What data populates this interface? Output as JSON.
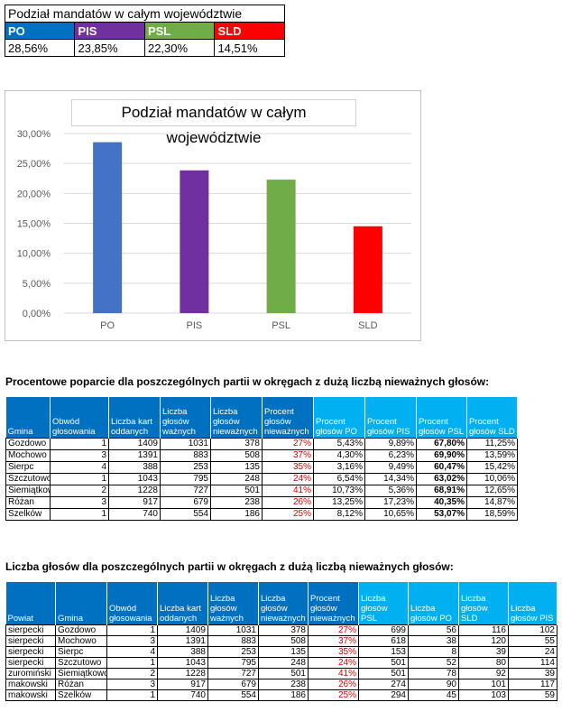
{
  "summary": {
    "title": "Podział mandatów w całym województwie",
    "parties": [
      {
        "name": "PO",
        "value": "28,56%",
        "color": "#0070C0"
      },
      {
        "name": "PIS",
        "value": "23,85%",
        "color": "#7030A0"
      },
      {
        "name": "PSL",
        "value": "22,30%",
        "color": "#70AD47"
      },
      {
        "name": "SLD",
        "value": "14,51%",
        "color": "#FF0000"
      }
    ]
  },
  "chart_data": {
    "type": "bar",
    "title": "Podział mandatów w całym województwie",
    "categories": [
      "PO",
      "PIS",
      "PSL",
      "SLD"
    ],
    "values": [
      28.56,
      23.85,
      22.3,
      14.51
    ],
    "colors": [
      "#4472C4",
      "#7030A0",
      "#70AD47",
      "#FF0000"
    ],
    "ylim": [
      0,
      30
    ],
    "yticks": [
      "0,00%",
      "5,00%",
      "10,00%",
      "15,00%",
      "20,00%",
      "25,00%",
      "30,00%"
    ],
    "grid": true
  },
  "table1": {
    "title": "Procentowe poparcie dla poszczególnych partii w okręgach z dużą liczbą nieważnych głosów:",
    "headers": [
      "Gmina",
      "Obwód głosowania",
      "Liczba kart oddanych",
      "Liczba głosów ważnych",
      "Liczba głosów nieważnych",
      "Procent głosów nieważnych",
      "Procent głosów PO",
      "Procent głosów PIS",
      "Procent głosów PSL",
      "Procent głosów SLD"
    ],
    "rows": [
      [
        "Gozdowo",
        "1",
        "1409",
        "1031",
        "378",
        "27%",
        "5,43%",
        "9,89%",
        "67,80%",
        "11,25%"
      ],
      [
        "Mochowo",
        "3",
        "1391",
        "883",
        "508",
        "37%",
        "4,30%",
        "6,23%",
        "69,90%",
        "13,59%"
      ],
      [
        "Sierpc",
        "4",
        "388",
        "253",
        "135",
        "35%",
        "3,16%",
        "9,49%",
        "60,47%",
        "15,42%"
      ],
      [
        "Szczutowo",
        "1",
        "1043",
        "795",
        "248",
        "24%",
        "6,54%",
        "14,34%",
        "63,02%",
        "10,06%"
      ],
      [
        "Siemiątkowo",
        "2",
        "1228",
        "727",
        "501",
        "41%",
        "10,73%",
        "5,36%",
        "68,91%",
        "12,65%"
      ],
      [
        "Różan",
        "3",
        "917",
        "679",
        "238",
        "26%",
        "13,25%",
        "17,23%",
        "40,35%",
        "14,87%"
      ],
      [
        "Szelków",
        "1",
        "740",
        "554",
        "186",
        "25%",
        "8,12%",
        "10,65%",
        "53,07%",
        "18,59%"
      ]
    ]
  },
  "table2": {
    "title": "Liczba głosów dla poszczególnych partii w okręgach z dużą liczbą nieważnych głosów:",
    "headers": [
      "Powiat",
      "Gmina",
      "Obwód głosowania",
      "Liczba kart oddanych",
      "Liczba głosów ważnych",
      "Liczba głosów nieważnych",
      "Procent głosów nieważnych",
      "Liczba głosów PSL",
      "Liczba głosów PO",
      "Liczba głosów SLD",
      "Liczba głosów PIS"
    ],
    "rows": [
      [
        "sierpecki",
        "Gozdowo",
        "1",
        "1409",
        "1031",
        "378",
        "27%",
        "699",
        "56",
        "116",
        "102"
      ],
      [
        "sierpecki",
        "Mochowo",
        "3",
        "1391",
        "883",
        "508",
        "37%",
        "618",
        "38",
        "120",
        "55"
      ],
      [
        "sierpecki",
        "Sierpc",
        "4",
        "388",
        "253",
        "135",
        "35%",
        "153",
        "8",
        "39",
        "24"
      ],
      [
        "sierpecki",
        "Szczutowo",
        "1",
        "1043",
        "795",
        "248",
        "24%",
        "501",
        "52",
        "80",
        "114"
      ],
      [
        "zuromiński",
        "Siemiątkowo",
        "2",
        "1228",
        "727",
        "501",
        "41%",
        "501",
        "78",
        "92",
        "39"
      ],
      [
        "makowski",
        "Różan",
        "3",
        "917",
        "679",
        "238",
        "26%",
        "274",
        "90",
        "101",
        "117"
      ],
      [
        "makowski",
        "Szelków",
        "1",
        "740",
        "554",
        "186",
        "25%",
        "294",
        "45",
        "103",
        "59"
      ]
    ]
  }
}
